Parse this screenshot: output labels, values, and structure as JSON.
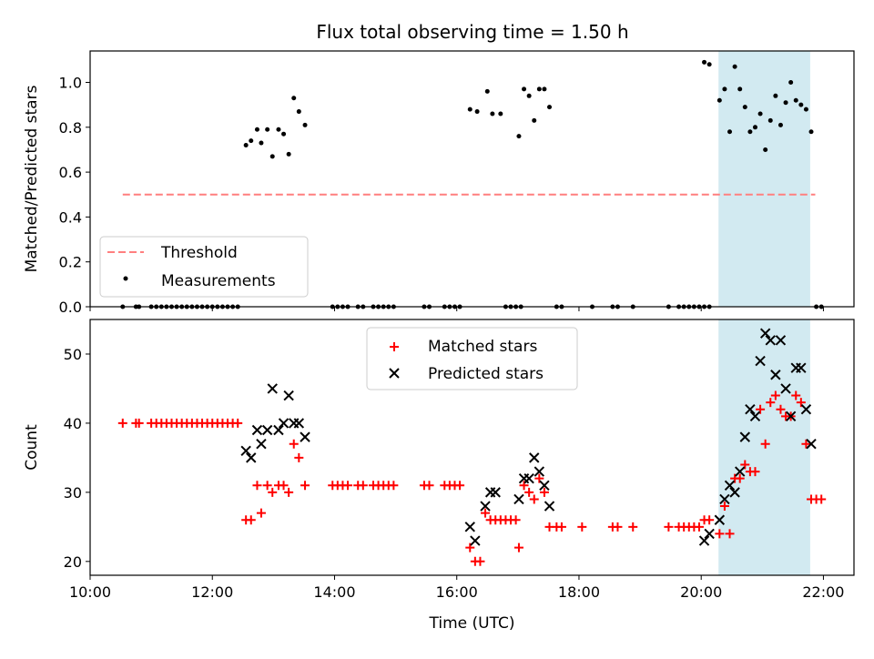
{
  "title": "Flux total observing time = 1.50 h",
  "colors": {
    "threshold": "#ff7f7f",
    "measurement": "#000000",
    "matched": "#ff0000",
    "predicted": "#000000",
    "highlight": "#add8e6"
  },
  "chart_data": [
    {
      "type": "scatter",
      "panel": "top",
      "ylabel": "Matched/Predicted stars",
      "xlabel": "",
      "xlim": [
        "10:00",
        "22:30"
      ],
      "ylim": [
        0,
        1.14
      ],
      "yticks": [
        0.0,
        0.2,
        0.4,
        0.6,
        0.8,
        1.0
      ],
      "ytick_labels": [
        "0.0",
        "0.2",
        "0.4",
        "0.6",
        "0.8",
        "1.0"
      ],
      "xticks": [
        "10:00",
        "12:00",
        "14:00",
        "16:00",
        "18:00",
        "20:00",
        "22:00"
      ],
      "xtick_labels": [],
      "shaded_region": [
        "20:17",
        "21:47"
      ],
      "legend": {
        "position": "lower left",
        "entries": [
          "Threshold",
          "Measurements"
        ]
      },
      "threshold": {
        "name": "Threshold",
        "value": 0.5,
        "x_range": [
          "10:32",
          "21:52"
        ]
      },
      "series": [
        {
          "name": "Measurements",
          "points": [
            [
              "10:32",
              0
            ],
            [
              "10:45",
              0
            ],
            [
              "10:48",
              0
            ],
            [
              "11:00",
              0
            ],
            [
              "11:05",
              0
            ],
            [
              "11:10",
              0
            ],
            [
              "11:15",
              0
            ],
            [
              "11:20",
              0
            ],
            [
              "11:25",
              0
            ],
            [
              "11:30",
              0
            ],
            [
              "11:35",
              0
            ],
            [
              "11:40",
              0
            ],
            [
              "11:45",
              0
            ],
            [
              "11:50",
              0
            ],
            [
              "11:55",
              0
            ],
            [
              "12:00",
              0
            ],
            [
              "12:05",
              0
            ],
            [
              "12:10",
              0
            ],
            [
              "12:15",
              0
            ],
            [
              "12:20",
              0
            ],
            [
              "12:25",
              0
            ],
            [
              "12:33",
              0.72
            ],
            [
              "12:38",
              0.74
            ],
            [
              "12:44",
              0.79
            ],
            [
              "12:48",
              0.73
            ],
            [
              "12:54",
              0.79
            ],
            [
              "12:59",
              0.67
            ],
            [
              "13:05",
              0.79
            ],
            [
              "13:10",
              0.77
            ],
            [
              "13:15",
              0.68
            ],
            [
              "13:20",
              0.93
            ],
            [
              "13:25",
              0.87
            ],
            [
              "13:31",
              0.81
            ],
            [
              "13:58",
              0
            ],
            [
              "14:03",
              0
            ],
            [
              "14:08",
              0
            ],
            [
              "14:13",
              0
            ],
            [
              "14:23",
              0
            ],
            [
              "14:28",
              0
            ],
            [
              "14:38",
              0
            ],
            [
              "14:43",
              0
            ],
            [
              "14:48",
              0
            ],
            [
              "14:53",
              0
            ],
            [
              "14:58",
              0
            ],
            [
              "15:28",
              0
            ],
            [
              "15:33",
              0
            ],
            [
              "15:48",
              0
            ],
            [
              "15:53",
              0
            ],
            [
              "15:58",
              0
            ],
            [
              "16:03",
              0
            ],
            [
              "16:13",
              0.88
            ],
            [
              "16:20",
              0.87
            ],
            [
              "16:30",
              0.96
            ],
            [
              "16:35",
              0.86
            ],
            [
              "16:43",
              0.86
            ],
            [
              "16:48",
              0
            ],
            [
              "16:53",
              0
            ],
            [
              "16:58",
              0
            ],
            [
              "17:03",
              0
            ],
            [
              "17:01",
              0.76
            ],
            [
              "17:06",
              0.97
            ],
            [
              "17:11",
              0.94
            ],
            [
              "17:16",
              0.83
            ],
            [
              "17:21",
              0.97
            ],
            [
              "17:26",
              0.97
            ],
            [
              "17:31",
              0.89
            ],
            [
              "17:38",
              0
            ],
            [
              "17:43",
              0
            ],
            [
              "18:13",
              0
            ],
            [
              "18:33",
              0
            ],
            [
              "18:38",
              0
            ],
            [
              "18:53",
              0
            ],
            [
              "19:28",
              0
            ],
            [
              "19:38",
              0
            ],
            [
              "19:43",
              0
            ],
            [
              "19:48",
              0
            ],
            [
              "19:53",
              0
            ],
            [
              "19:58",
              0
            ],
            [
              "20:03",
              0
            ],
            [
              "20:08",
              0
            ],
            [
              "20:03",
              1.09
            ],
            [
              "20:08",
              1.08
            ],
            [
              "20:18",
              0.92
            ],
            [
              "20:23",
              0.97
            ],
            [
              "20:28",
              0.78
            ],
            [
              "20:33",
              1.07
            ],
            [
              "20:38",
              0.97
            ],
            [
              "20:43",
              0.89
            ],
            [
              "20:48",
              0.78
            ],
            [
              "20:53",
              0.8
            ],
            [
              "20:58",
              0.86
            ],
            [
              "21:03",
              0.7
            ],
            [
              "21:08",
              0.83
            ],
            [
              "21:13",
              0.94
            ],
            [
              "21:18",
              0.81
            ],
            [
              "21:23",
              0.91
            ],
            [
              "21:28",
              1.0
            ],
            [
              "21:33",
              0.92
            ],
            [
              "21:38",
              0.9
            ],
            [
              "21:43",
              0.88
            ],
            [
              "21:48",
              0.78
            ],
            [
              "21:53",
              0
            ],
            [
              "21:58",
              0
            ]
          ]
        }
      ]
    },
    {
      "type": "scatter",
      "panel": "bottom",
      "xlabel": "Time (UTC)",
      "ylabel": "Count",
      "xlim": [
        "10:00",
        "22:30"
      ],
      "ylim": [
        18,
        55
      ],
      "yticks": [
        20,
        30,
        40,
        50
      ],
      "ytick_labels": [
        "20",
        "30",
        "40",
        "50"
      ],
      "xticks": [
        "10:00",
        "12:00",
        "14:00",
        "16:00",
        "18:00",
        "20:00",
        "22:00"
      ],
      "xtick_labels": [
        "10:00",
        "12:00",
        "14:00",
        "16:00",
        "18:00",
        "20:00",
        "22:00"
      ],
      "shaded_region": [
        "20:17",
        "21:47"
      ],
      "legend": {
        "position": "upper center",
        "entries": [
          "Matched stars",
          "Predicted stars"
        ]
      },
      "series": [
        {
          "name": "Matched stars",
          "marker": "plus",
          "points": [
            [
              "10:32",
              40
            ],
            [
              "10:45",
              40
            ],
            [
              "10:48",
              40
            ],
            [
              "11:00",
              40
            ],
            [
              "11:05",
              40
            ],
            [
              "11:10",
              40
            ],
            [
              "11:15",
              40
            ],
            [
              "11:20",
              40
            ],
            [
              "11:25",
              40
            ],
            [
              "11:30",
              40
            ],
            [
              "11:35",
              40
            ],
            [
              "11:40",
              40
            ],
            [
              "11:45",
              40
            ],
            [
              "11:50",
              40
            ],
            [
              "11:55",
              40
            ],
            [
              "12:00",
              40
            ],
            [
              "12:05",
              40
            ],
            [
              "12:10",
              40
            ],
            [
              "12:15",
              40
            ],
            [
              "12:20",
              40
            ],
            [
              "12:25",
              40
            ],
            [
              "12:33",
              26
            ],
            [
              "12:38",
              26
            ],
            [
              "12:44",
              31
            ],
            [
              "12:48",
              27
            ],
            [
              "12:54",
              31
            ],
            [
              "12:59",
              30
            ],
            [
              "13:05",
              31
            ],
            [
              "13:10",
              31
            ],
            [
              "13:15",
              30
            ],
            [
              "13:20",
              37
            ],
            [
              "13:25",
              35
            ],
            [
              "13:31",
              31
            ],
            [
              "13:58",
              31
            ],
            [
              "14:03",
              31
            ],
            [
              "14:08",
              31
            ],
            [
              "14:13",
              31
            ],
            [
              "14:23",
              31
            ],
            [
              "14:28",
              31
            ],
            [
              "14:38",
              31
            ],
            [
              "14:43",
              31
            ],
            [
              "14:48",
              31
            ],
            [
              "14:53",
              31
            ],
            [
              "14:58",
              31
            ],
            [
              "15:28",
              31
            ],
            [
              "15:33",
              31
            ],
            [
              "15:48",
              31
            ],
            [
              "15:53",
              31
            ],
            [
              "15:58",
              31
            ],
            [
              "16:03",
              31
            ],
            [
              "16:13",
              22
            ],
            [
              "16:18",
              20
            ],
            [
              "16:23",
              20
            ],
            [
              "16:28",
              27
            ],
            [
              "16:33",
              26
            ],
            [
              "16:38",
              26
            ],
            [
              "16:43",
              26
            ],
            [
              "16:48",
              26
            ],
            [
              "16:53",
              26
            ],
            [
              "16:58",
              26
            ],
            [
              "17:01",
              22
            ],
            [
              "17:06",
              31
            ],
            [
              "17:11",
              30
            ],
            [
              "17:16",
              29
            ],
            [
              "17:21",
              32
            ],
            [
              "17:26",
              30
            ],
            [
              "17:31",
              25
            ],
            [
              "17:38",
              25
            ],
            [
              "17:43",
              25
            ],
            [
              "18:03",
              25
            ],
            [
              "18:33",
              25
            ],
            [
              "18:38",
              25
            ],
            [
              "18:53",
              25
            ],
            [
              "19:28",
              25
            ],
            [
              "19:38",
              25
            ],
            [
              "19:43",
              25
            ],
            [
              "19:48",
              25
            ],
            [
              "19:53",
              25
            ],
            [
              "19:58",
              25
            ],
            [
              "20:03",
              26
            ],
            [
              "20:08",
              26
            ],
            [
              "20:18",
              24
            ],
            [
              "20:23",
              28
            ],
            [
              "20:28",
              24
            ],
            [
              "20:33",
              32
            ],
            [
              "20:38",
              32
            ],
            [
              "20:43",
              34
            ],
            [
              "20:48",
              33
            ],
            [
              "20:53",
              33
            ],
            [
              "20:58",
              42
            ],
            [
              "21:03",
              37
            ],
            [
              "21:08",
              43
            ],
            [
              "21:13",
              44
            ],
            [
              "21:18",
              42
            ],
            [
              "21:23",
              41
            ],
            [
              "21:28",
              41
            ],
            [
              "21:33",
              44
            ],
            [
              "21:38",
              43
            ],
            [
              "21:43",
              37
            ],
            [
              "21:48",
              29
            ],
            [
              "21:53",
              29
            ],
            [
              "21:58",
              29
            ]
          ]
        },
        {
          "name": "Predicted stars",
          "marker": "x",
          "points": [
            [
              "12:33",
              36
            ],
            [
              "12:38",
              35
            ],
            [
              "12:44",
              39
            ],
            [
              "12:48",
              37
            ],
            [
              "12:54",
              39
            ],
            [
              "12:59",
              45
            ],
            [
              "13:05",
              39
            ],
            [
              "13:10",
              40
            ],
            [
              "13:15",
              44
            ],
            [
              "13:20",
              40
            ],
            [
              "13:25",
              40
            ],
            [
              "13:31",
              38
            ],
            [
              "16:13",
              25
            ],
            [
              "16:18",
              23
            ],
            [
              "16:28",
              28
            ],
            [
              "16:33",
              30
            ],
            [
              "16:38",
              30
            ],
            [
              "17:01",
              29
            ],
            [
              "17:06",
              32
            ],
            [
              "17:11",
              32
            ],
            [
              "17:16",
              35
            ],
            [
              "17:21",
              33
            ],
            [
              "17:26",
              31
            ],
            [
              "17:31",
              28
            ],
            [
              "20:03",
              23
            ],
            [
              "20:08",
              24
            ],
            [
              "20:18",
              26
            ],
            [
              "20:23",
              29
            ],
            [
              "20:28",
              31
            ],
            [
              "20:33",
              30
            ],
            [
              "20:38",
              33
            ],
            [
              "20:43",
              38
            ],
            [
              "20:48",
              42
            ],
            [
              "20:53",
              41
            ],
            [
              "20:58",
              49
            ],
            [
              "21:03",
              53
            ],
            [
              "21:08",
              52
            ],
            [
              "21:13",
              47
            ],
            [
              "21:18",
              52
            ],
            [
              "21:23",
              45
            ],
            [
              "21:28",
              41
            ],
            [
              "21:33",
              48
            ],
            [
              "21:38",
              48
            ],
            [
              "21:43",
              42
            ],
            [
              "21:48",
              37
            ]
          ]
        }
      ]
    }
  ]
}
